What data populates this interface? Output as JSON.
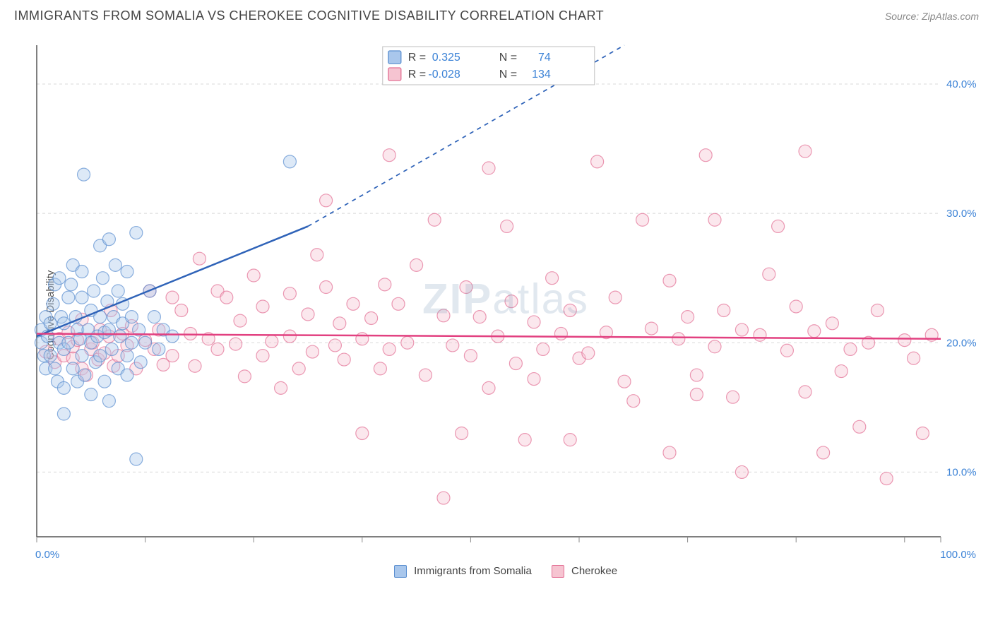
{
  "title": "IMMIGRANTS FROM SOMALIA VS CHEROKEE COGNITIVE DISABILITY CORRELATION CHART",
  "source": "Source: ZipAtlas.com",
  "y_axis_label": "Cognitive Disability",
  "watermark": "ZIPatlas",
  "chart": {
    "type": "scatter",
    "background_color": "#ffffff",
    "grid_color": "#d8d8d8",
    "axis_color": "#555555",
    "tick_color": "#888888",
    "xlim": [
      0,
      100
    ],
    "ylim": [
      5,
      43
    ],
    "x_tick_positions": [
      0,
      12,
      24,
      36,
      48,
      60,
      72,
      84,
      96,
      100
    ],
    "x_tick_labels_shown": {
      "0": "0.0%",
      "100": "100.0%"
    },
    "y_grid_lines": [
      10,
      20,
      30,
      40
    ],
    "y_tick_labels": [
      "10.0%",
      "20.0%",
      "30.0%",
      "40.0%"
    ],
    "axis_label_color": "#3b82d6",
    "axis_label_fontsize": 15,
    "marker_radius": 9,
    "marker_opacity": 0.4,
    "series": [
      {
        "name": "Immigrants from Somalia",
        "color_fill": "#a9c7ec",
        "color_stroke": "#5b8fd0",
        "R": "0.325",
        "N": "74",
        "trend": {
          "x1": 0,
          "y1": 20.5,
          "x2": 30,
          "y2": 29.0,
          "dash_extend_x2": 65,
          "dash_extend_y2": 43,
          "color": "#2f63b8",
          "width": 2.5
        },
        "points": [
          [
            0.5,
            20
          ],
          [
            0.5,
            21
          ],
          [
            0.8,
            19
          ],
          [
            1,
            22
          ],
          [
            1,
            18
          ],
          [
            1.2,
            20.5
          ],
          [
            1.5,
            21.5
          ],
          [
            1.5,
            19
          ],
          [
            1.8,
            23
          ],
          [
            2,
            24.5
          ],
          [
            2,
            18
          ],
          [
            2.3,
            17
          ],
          [
            2.5,
            20
          ],
          [
            2.5,
            25
          ],
          [
            2.7,
            22
          ],
          [
            3,
            21.5
          ],
          [
            3,
            19.5
          ],
          [
            3,
            16.5
          ],
          [
            3.5,
            23.5
          ],
          [
            3.5,
            20
          ],
          [
            3.8,
            24.5
          ],
          [
            4,
            18
          ],
          [
            4,
            26
          ],
          [
            4.3,
            22
          ],
          [
            4.5,
            17
          ],
          [
            4.5,
            21
          ],
          [
            4.8,
            20.3
          ],
          [
            5,
            23.5
          ],
          [
            5,
            19
          ],
          [
            5,
            25.5
          ],
          [
            5.2,
            33
          ],
          [
            5.3,
            17.5
          ],
          [
            5.7,
            21
          ],
          [
            6,
            22.5
          ],
          [
            6,
            20
          ],
          [
            6,
            16
          ],
          [
            6.3,
            24
          ],
          [
            6.5,
            18.5
          ],
          [
            6.7,
            20.5
          ],
          [
            7,
            27.5
          ],
          [
            7,
            22
          ],
          [
            7,
            19
          ],
          [
            7.3,
            25
          ],
          [
            7.5,
            17
          ],
          [
            7.5,
            20.8
          ],
          [
            7.8,
            23.2
          ],
          [
            8,
            21
          ],
          [
            8,
            15.5
          ],
          [
            8,
            28
          ],
          [
            8.3,
            19.5
          ],
          [
            8.5,
            22
          ],
          [
            8.7,
            26
          ],
          [
            9,
            18
          ],
          [
            9,
            24
          ],
          [
            9.2,
            20.5
          ],
          [
            9.5,
            21.5
          ],
          [
            9.5,
            23
          ],
          [
            10,
            19
          ],
          [
            10,
            25.5
          ],
          [
            10,
            17.5
          ],
          [
            10.5,
            22
          ],
          [
            10.5,
            20
          ],
          [
            11,
            28.5
          ],
          [
            11,
            11
          ],
          [
            11.3,
            21
          ],
          [
            11.5,
            18.5
          ],
          [
            12,
            20
          ],
          [
            12.5,
            24
          ],
          [
            13,
            22
          ],
          [
            13.5,
            19.5
          ],
          [
            14,
            21
          ],
          [
            15,
            20.5
          ],
          [
            28,
            34
          ],
          [
            3,
            14.5
          ]
        ]
      },
      {
        "name": "Cherokee",
        "color_fill": "#f6c4d1",
        "color_stroke": "#e36f94",
        "R": "-0.028",
        "N": "134",
        "trend": {
          "x1": 0,
          "y1": 20.7,
          "x2": 100,
          "y2": 20.3,
          "color": "#e24080",
          "width": 2.5
        },
        "points": [
          [
            1,
            19.3
          ],
          [
            2,
            18.5
          ],
          [
            2.5,
            20.3
          ],
          [
            3,
            19
          ],
          [
            3.5,
            20.8
          ],
          [
            4,
            18.8
          ],
          [
            4,
            19.7
          ],
          [
            4.5,
            20.2
          ],
          [
            5,
            18
          ],
          [
            5,
            21.8
          ],
          [
            5.5,
            17.5
          ],
          [
            6,
            19.5
          ],
          [
            6.2,
            20
          ],
          [
            6.8,
            18.7
          ],
          [
            7,
            21
          ],
          [
            7.5,
            19.2
          ],
          [
            8,
            20.5
          ],
          [
            8.2,
            22.5
          ],
          [
            8.5,
            18.2
          ],
          [
            9,
            19
          ],
          [
            9.5,
            20.7
          ],
          [
            10,
            19.8
          ],
          [
            10.5,
            21.3
          ],
          [
            11,
            18
          ],
          [
            12,
            20.2
          ],
          [
            12.5,
            24
          ],
          [
            13,
            19.5
          ],
          [
            13.5,
            21
          ],
          [
            14,
            18.3
          ],
          [
            15,
            23.5
          ],
          [
            15,
            19
          ],
          [
            16,
            22.5
          ],
          [
            17,
            20.7
          ],
          [
            17.5,
            18.2
          ],
          [
            18,
            26.5
          ],
          [
            19,
            20.3
          ],
          [
            20,
            24
          ],
          [
            20,
            19.5
          ],
          [
            21,
            23.5
          ],
          [
            22,
            19.9
          ],
          [
            22.5,
            21.7
          ],
          [
            23,
            17.4
          ],
          [
            24,
            25.2
          ],
          [
            25,
            19
          ],
          [
            25,
            22.8
          ],
          [
            26,
            20.1
          ],
          [
            27,
            16.5
          ],
          [
            28,
            23.8
          ],
          [
            28,
            20.5
          ],
          [
            29,
            18
          ],
          [
            30,
            22.2
          ],
          [
            30.5,
            19.3
          ],
          [
            31,
            26.8
          ],
          [
            32,
            31
          ],
          [
            32,
            24.3
          ],
          [
            33,
            19.8
          ],
          [
            33.5,
            21.5
          ],
          [
            34,
            18.7
          ],
          [
            35,
            23
          ],
          [
            36,
            13
          ],
          [
            36,
            20.3
          ],
          [
            37,
            21.9
          ],
          [
            38,
            18
          ],
          [
            38.5,
            24.5
          ],
          [
            39,
            34.5
          ],
          [
            39,
            19.5
          ],
          [
            40,
            23
          ],
          [
            41,
            20
          ],
          [
            42,
            26
          ],
          [
            43,
            17.5
          ],
          [
            44,
            29.5
          ],
          [
            45,
            22.1
          ],
          [
            45,
            8
          ],
          [
            46,
            19.8
          ],
          [
            47,
            13
          ],
          [
            47.5,
            24.3
          ],
          [
            48,
            19
          ],
          [
            49,
            22
          ],
          [
            50,
            33.5
          ],
          [
            50,
            16.5
          ],
          [
            51,
            20.5
          ],
          [
            52,
            29
          ],
          [
            52.5,
            23.2
          ],
          [
            53,
            18.4
          ],
          [
            54,
            12.5
          ],
          [
            55,
            21.6
          ],
          [
            55,
            17.2
          ],
          [
            56,
            19.5
          ],
          [
            57,
            25
          ],
          [
            58,
            20.7
          ],
          [
            59,
            22.5
          ],
          [
            59,
            12.5
          ],
          [
            60,
            18.8
          ],
          [
            61,
            19.2
          ],
          [
            62,
            34
          ],
          [
            63,
            20.8
          ],
          [
            64,
            23.5
          ],
          [
            65,
            17
          ],
          [
            66,
            15.5
          ],
          [
            67,
            29.5
          ],
          [
            68,
            21.1
          ],
          [
            70,
            24.8
          ],
          [
            70,
            11.5
          ],
          [
            71,
            20.3
          ],
          [
            72,
            22
          ],
          [
            73,
            17.5
          ],
          [
            74,
            34.5
          ],
          [
            75,
            29.5
          ],
          [
            75,
            19.7
          ],
          [
            76,
            22.5
          ],
          [
            77,
            15.8
          ],
          [
            78,
            21
          ],
          [
            78,
            10
          ],
          [
            80,
            20.6
          ],
          [
            81,
            25.3
          ],
          [
            82,
            29
          ],
          [
            83,
            19.4
          ],
          [
            84,
            22.8
          ],
          [
            85,
            16.2
          ],
          [
            86,
            20.9
          ],
          [
            87,
            11.5
          ],
          [
            88,
            21.5
          ],
          [
            89,
            17.8
          ],
          [
            90,
            19.5
          ],
          [
            91,
            13.5
          ],
          [
            92,
            20
          ],
          [
            93,
            22.5
          ],
          [
            94,
            9.5
          ],
          [
            96,
            20.2
          ],
          [
            97,
            18.8
          ],
          [
            98,
            13
          ],
          [
            99,
            20.6
          ],
          [
            85,
            34.8
          ],
          [
            73,
            16
          ]
        ]
      }
    ],
    "stats_box": {
      "border_color": "#bfbfbf",
      "fill": "#ffffff",
      "text_color": "#444",
      "value_color": "#3b82d6",
      "fontsize": 16,
      "labels": [
        "R =",
        "N ="
      ]
    }
  },
  "bottom_legend": {
    "fontsize": 15,
    "text_color": "#444"
  }
}
